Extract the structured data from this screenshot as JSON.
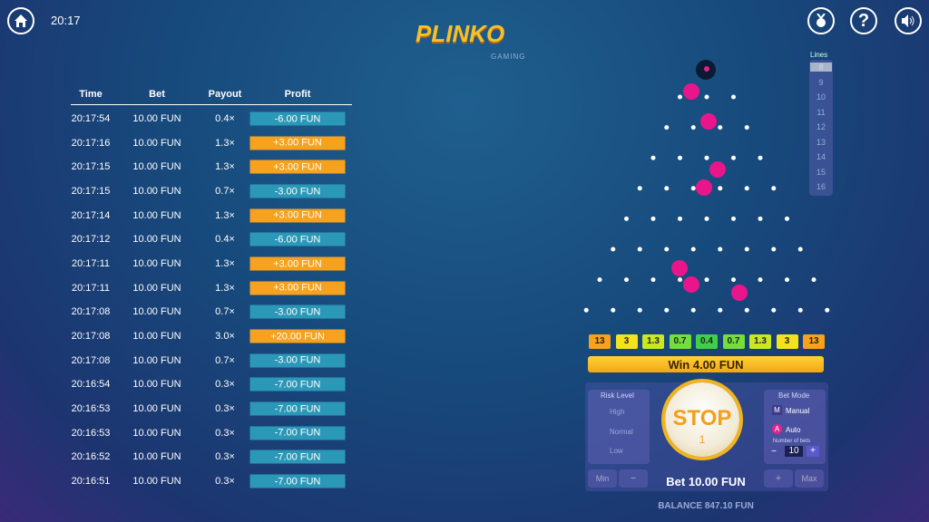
{
  "header": {
    "time": "20:17",
    "logo": "PLINKO",
    "brand": "GAMING",
    "help": "?"
  },
  "history": {
    "columns": [
      "Time",
      "Bet",
      "Payout",
      "Profit"
    ],
    "rows": [
      [
        "20:17:54",
        "10.00 FUN",
        "0.4×",
        "-6.00 FUN"
      ],
      [
        "20:17:16",
        "10.00 FUN",
        "1.3×",
        "+3.00 FUN"
      ],
      [
        "20:17:15",
        "10.00 FUN",
        "1.3×",
        "+3.00 FUN"
      ],
      [
        "20:17:15",
        "10.00 FUN",
        "0.7×",
        "-3.00 FUN"
      ],
      [
        "20:17:14",
        "10.00 FUN",
        "1.3×",
        "+3.00 FUN"
      ],
      [
        "20:17:12",
        "10.00 FUN",
        "0.4×",
        "-6.00 FUN"
      ],
      [
        "20:17:11",
        "10.00 FUN",
        "1.3×",
        "+3.00 FUN"
      ],
      [
        "20:17:11",
        "10.00 FUN",
        "1.3×",
        "+3.00 FUN"
      ],
      [
        "20:17:08",
        "10.00 FUN",
        "0.7×",
        "-3.00 FUN"
      ],
      [
        "20:17:08",
        "10.00 FUN",
        "3.0×",
        "+20.00 FUN"
      ],
      [
        "20:17:08",
        "10.00 FUN",
        "0.7×",
        "-3.00 FUN"
      ],
      [
        "20:16:54",
        "10.00 FUN",
        "0.3×",
        "-7.00 FUN"
      ],
      [
        "20:16:53",
        "10.00 FUN",
        "0.3×",
        "-7.00 FUN"
      ],
      [
        "20:16:53",
        "10.00 FUN",
        "0.3×",
        "-7.00 FUN"
      ],
      [
        "20:16:52",
        "10.00 FUN",
        "0.3×",
        "-7.00 FUN"
      ],
      [
        "20:16:51",
        "10.00 FUN",
        "0.3×",
        "-7.00 FUN"
      ]
    ]
  },
  "lines": {
    "title": "Lines",
    "options": [
      "8",
      "9",
      "10",
      "11",
      "12",
      "13",
      "14",
      "15",
      "16"
    ]
  },
  "bins": [
    {
      "label": "13",
      "color": "#f7a11c"
    },
    {
      "label": "3",
      "color": "#f3e21c"
    },
    {
      "label": "1.3",
      "color": "#c9e823"
    },
    {
      "label": "0.7",
      "color": "#72df3a"
    },
    {
      "label": "0.4",
      "color": "#3fcf4b"
    },
    {
      "label": "0.7",
      "color": "#72df3a"
    },
    {
      "label": "1.3",
      "color": "#c9e823"
    },
    {
      "label": "3",
      "color": "#f3e21c"
    },
    {
      "label": "13",
      "color": "#f7a11c"
    }
  ],
  "win": "Win 4.00 FUN",
  "risk": {
    "title": "Risk Level",
    "options": [
      "High",
      "Normal",
      "Low"
    ]
  },
  "stop": {
    "label": "STOP",
    "count": "1"
  },
  "bet_mode": {
    "title": "Bet Mode",
    "manual_key": "M",
    "manual": "Manual",
    "auto_key": "A",
    "auto": "Auto",
    "bets_label": "Number of bets",
    "minus": "−",
    "bets": "10",
    "plus": "+"
  },
  "bet_bar": {
    "min": "Min",
    "minus": "−",
    "bet": "Bet 10.00 FUN",
    "plus": "+",
    "max": "Max"
  },
  "balance": "BALANCE 847.10 FUN"
}
